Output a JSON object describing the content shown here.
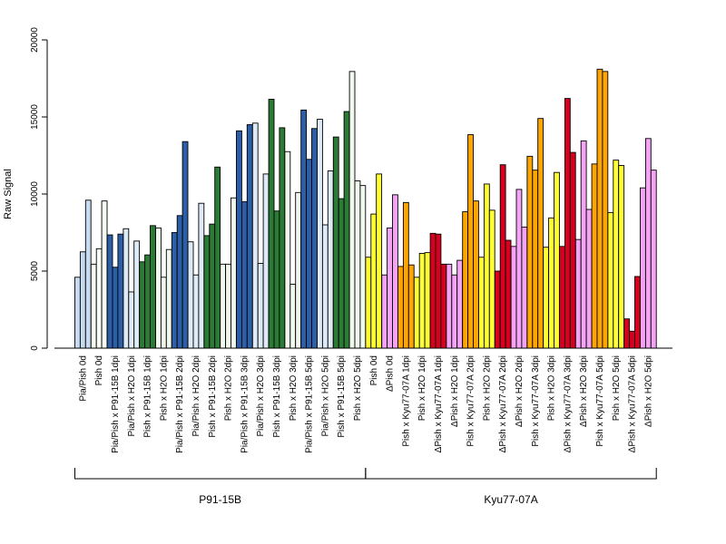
{
  "chart_data": {
    "type": "bar",
    "ylabel": "Raw Signal",
    "ylim": [
      0,
      20000
    ],
    "yticks": [
      0,
      5000,
      10000,
      15000,
      20000
    ],
    "grid": false,
    "categories": [
      "Pia/Pish 0d",
      "Pish 0d",
      "Pia/Pish x P91-15B 1dpi",
      "Pia/Pish x H2O 1dpi",
      "Pish x P91-15B 1dpi",
      "Pish x H2O 1dpi",
      "Pia/Pish x P91-15B 2dpi",
      "Pia/Pish x H2O 2dpi",
      "Pish x P91-15B 2dpi",
      "Pish x H2O 2dpi",
      "Pia/Pish x P91-15B 3dpi",
      "Pia/Pish x H2O 3dpi",
      "Pish x P91-15B 3dpi",
      "Pish x H2O 3dpi",
      "Pia/Pish x P91-15B 5dpi",
      "Pia/Pish x H2O 5dpi",
      "Pish x P91-15B 5dpi",
      "Pish x H2O 5dpi",
      "Pish 0d",
      "ΔPish 0d",
      "Pish x Kyu77-07A 1dpi",
      "Pish x H2O 1dpi",
      "ΔPish x Kyu77-07A 1dpi",
      "ΔPish x H2O 1dpi",
      "Pish x Kyu77-07A 2dpi",
      "Pish x H2O 2dpi",
      "ΔPish x Kyu77-07A 2dpi",
      "ΔPish x H2O 2dpi",
      "Pish x Kyu77-07A 3dpi",
      "Pish x H2O 3dpi",
      "ΔPish x Kyu77-07A 3dpi",
      "ΔPish x H2O 3dpi",
      "Pish x Kyu77-07A 5dpi",
      "Pish x H2O 5dpi",
      "ΔPish x Kyu77-07A 5dpi",
      "ΔPish x H2O 5dpi"
    ],
    "replicates_per_category": 3,
    "values": [
      [
        4600,
        6250,
        9600
      ],
      [
        5450,
        6450,
        9550
      ],
      [
        7350,
        5250,
        7400
      ],
      [
        7750,
        3650,
        6950
      ],
      [
        5600,
        6050,
        7950
      ],
      [
        7800,
        4600,
        6400
      ],
      [
        7500,
        8600,
        13400
      ],
      [
        6900,
        4750,
        9400
      ],
      [
        7300,
        8050,
        11750
      ],
      [
        5450,
        5450,
        9750
      ],
      [
        14100,
        9500,
        14500
      ],
      [
        14600,
        5500,
        11300
      ],
      [
        16150,
        8900,
        14300
      ],
      [
        12750,
        4150,
        10100
      ],
      [
        15450,
        12250,
        14250
      ],
      [
        14850,
        8000,
        11500
      ],
      [
        13700,
        9700,
        15350
      ],
      [
        17950,
        10850,
        10550
      ],
      [
        5900,
        8700,
        11300
      ],
      [
        4750,
        7800,
        9950
      ],
      [
        5300,
        9450,
        5400
      ],
      [
        4600,
        6150,
        6200
      ],
      [
        7450,
        7400,
        5450
      ],
      [
        5450,
        4750,
        5700
      ],
      [
        8850,
        13850,
        9550
      ],
      [
        5900,
        10650,
        8950
      ],
      [
        5000,
        11900,
        7000
      ],
      [
        6600,
        10300,
        7850
      ],
      [
        12450,
        11550,
        14900
      ],
      [
        6550,
        8450,
        11400
      ],
      [
        6600,
        16200,
        12700
      ],
      [
        7050,
        13450,
        9000
      ],
      [
        11950,
        18100,
        17950
      ],
      [
        8800,
        12200,
        11850
      ],
      [
        1900,
        1100,
        4650
      ],
      [
        10400,
        13600,
        11550
      ]
    ],
    "colors": [
      "#c6dbef",
      "#f7fcf5",
      "#2c5fa8",
      "#deebf7",
      "#2b7a35",
      "#f1f8ee",
      "#2c5fa8",
      "#deebf7",
      "#2b7a35",
      "#f1f8ee",
      "#2c5fa8",
      "#deebf7",
      "#2b7a35",
      "#f1f8ee",
      "#2c5fa8",
      "#deebf7",
      "#2b7a35",
      "#f1f8ee",
      "#ffff33",
      "#f5a3f5",
      "#ffa500",
      "#ffff33",
      "#d7001f",
      "#f5a3f5",
      "#ffa500",
      "#ffff33",
      "#d7001f",
      "#f5a3f5",
      "#ffa500",
      "#ffff33",
      "#d7001f",
      "#f5a3f5",
      "#ffa500",
      "#ffff33",
      "#d7001f",
      "#f5a3f5"
    ],
    "groups": [
      {
        "label": "P91-15B",
        "from": 0,
        "to": 17
      },
      {
        "label": "Kyu77-07A",
        "from": 18,
        "to": 35
      }
    ]
  }
}
